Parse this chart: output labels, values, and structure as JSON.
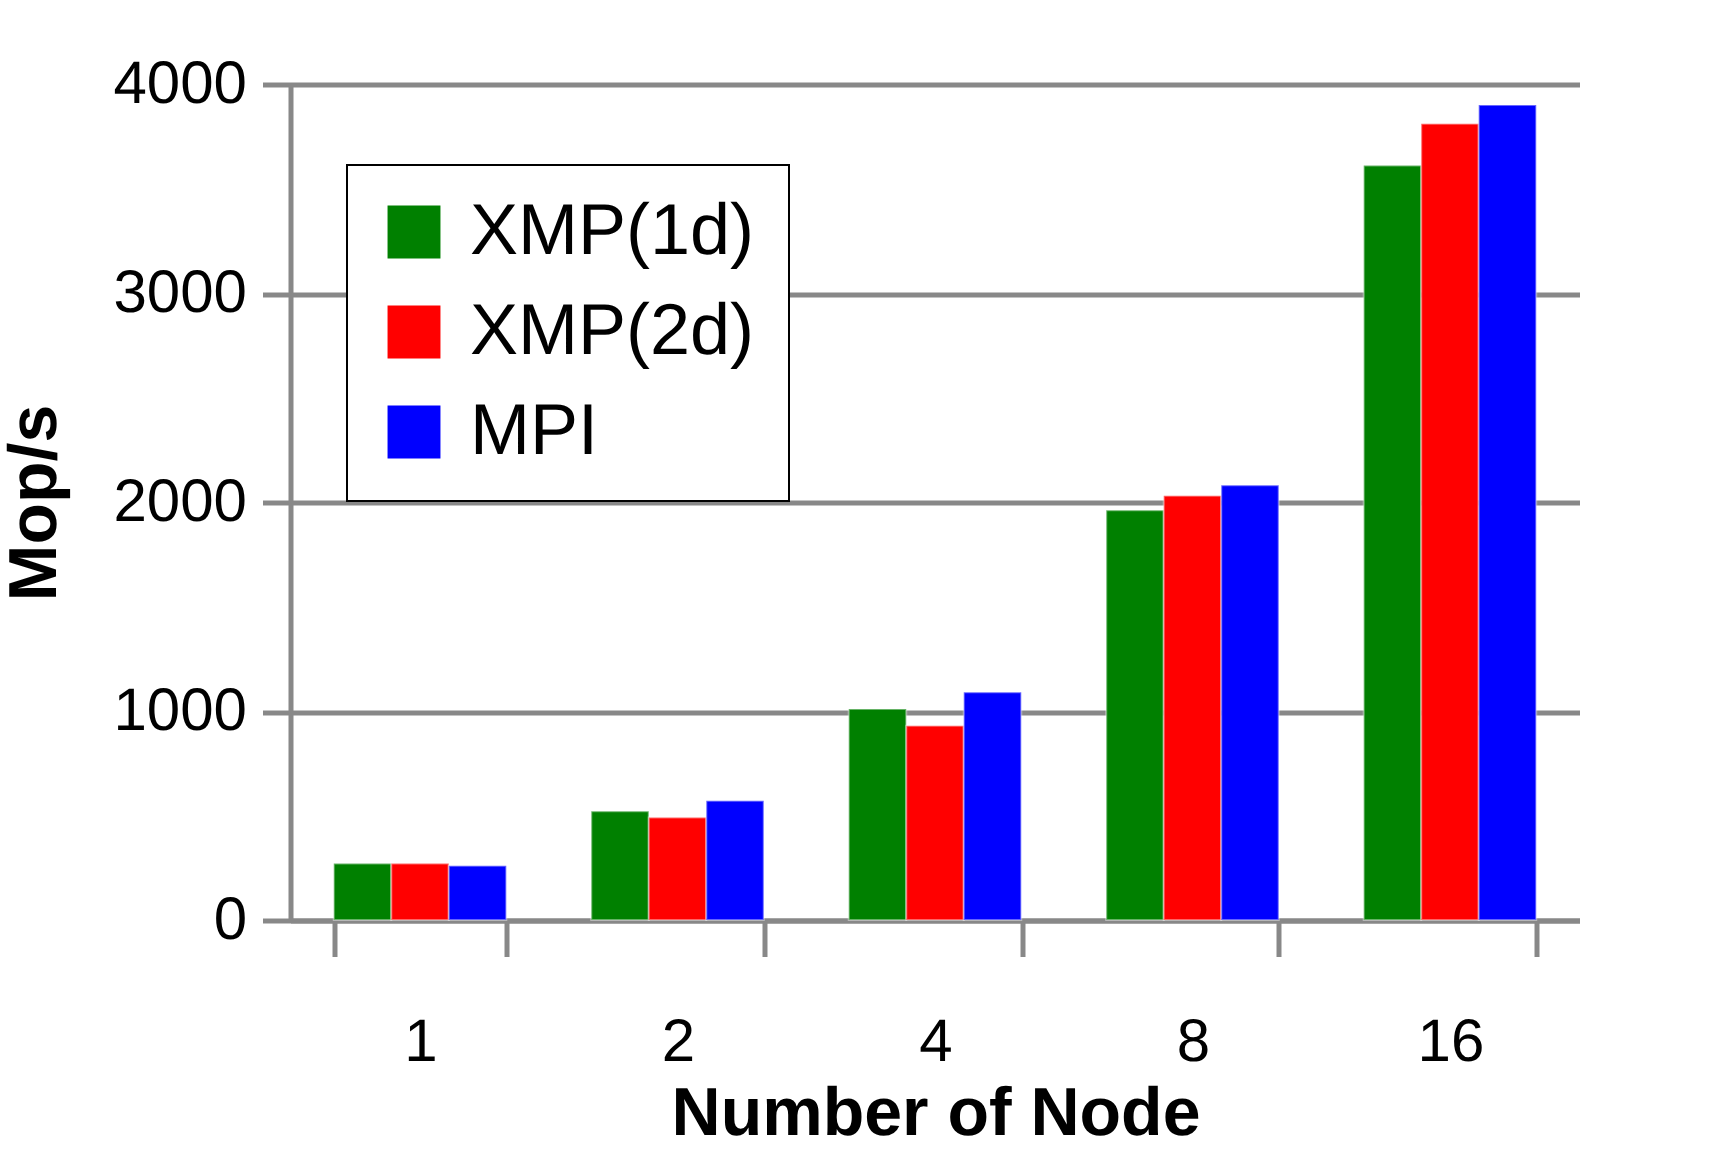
{
  "chart_data": {
    "type": "bar",
    "xlabel": "Number of Node",
    "ylabel": "Mop/s",
    "categories": [
      "1",
      "2",
      "4",
      "8",
      "16"
    ],
    "series": [
      {
        "name": "XMP(1d)",
        "color": "#008000",
        "values": [
          270,
          520,
          1010,
          1960,
          3610
        ]
      },
      {
        "name": "XMP(2d)",
        "color": "#ff0000",
        "values": [
          270,
          490,
          930,
          2030,
          3810
        ]
      },
      {
        "name": "MPI",
        "color": "#0000ff",
        "values": [
          260,
          570,
          1090,
          2080,
          3900
        ]
      }
    ],
    "ylim": [
      0,
      4000
    ],
    "yticks": [
      0,
      1000,
      2000,
      3000,
      4000
    ],
    "grid": "y",
    "legend": "top left"
  }
}
